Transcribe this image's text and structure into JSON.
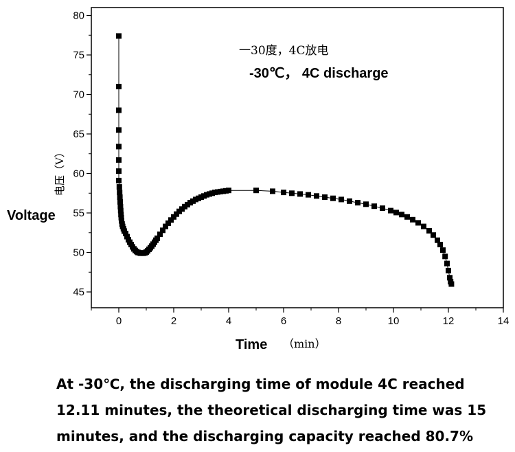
{
  "chart_data": {
    "type": "scatter",
    "title_cn": "一30度，4C放电",
    "title_en": "-30℃， 4C discharge",
    "xlabel": "Time",
    "xlabel_unit": "（min）",
    "ylabel": "Voltage",
    "ylabel_cn": "电压（V）",
    "xlim": [
      -1,
      14
    ],
    "ylim": [
      43,
      81
    ],
    "x_ticks": [
      0,
      2,
      4,
      6,
      8,
      10,
      12,
      14
    ],
    "y_ticks": [
      45,
      50,
      55,
      60,
      65,
      70,
      75,
      80
    ],
    "grid": false,
    "series": [
      {
        "name": "-30℃ 4C discharge",
        "points": [
          [
            0.0,
            77.4
          ],
          [
            0.0,
            71.0
          ],
          [
            0.0,
            68.0
          ],
          [
            0.0,
            65.5
          ],
          [
            0.0,
            63.4
          ],
          [
            0.0,
            61.7
          ],
          [
            0.0,
            60.3
          ],
          [
            0.0,
            59.1
          ],
          [
            0.02,
            58.3
          ],
          [
            0.03,
            57.6
          ],
          [
            0.04,
            57.0
          ],
          [
            0.05,
            56.4
          ],
          [
            0.06,
            55.8
          ],
          [
            0.07,
            55.3
          ],
          [
            0.08,
            54.8
          ],
          [
            0.09,
            54.4
          ],
          [
            0.1,
            54.0
          ],
          [
            0.12,
            53.6
          ],
          [
            0.14,
            53.3
          ],
          [
            0.17,
            53.0
          ],
          [
            0.2,
            52.7
          ],
          [
            0.25,
            52.4
          ],
          [
            0.3,
            52.0
          ],
          [
            0.35,
            51.6
          ],
          [
            0.4,
            51.3
          ],
          [
            0.45,
            51.0
          ],
          [
            0.5,
            50.7
          ],
          [
            0.55,
            50.45
          ],
          [
            0.6,
            50.25
          ],
          [
            0.65,
            50.1
          ],
          [
            0.7,
            50.0
          ],
          [
            0.75,
            49.95
          ],
          [
            0.8,
            49.9
          ],
          [
            0.85,
            49.9
          ],
          [
            0.9,
            49.9
          ],
          [
            0.95,
            49.95
          ],
          [
            1.0,
            50.05
          ],
          [
            1.05,
            50.2
          ],
          [
            1.1,
            50.4
          ],
          [
            1.15,
            50.6
          ],
          [
            1.2,
            50.8
          ],
          [
            1.25,
            51.05
          ],
          [
            1.3,
            51.3
          ],
          [
            1.35,
            51.55
          ],
          [
            1.4,
            51.8
          ],
          [
            1.5,
            52.3
          ],
          [
            1.6,
            52.8
          ],
          [
            1.7,
            53.3
          ],
          [
            1.8,
            53.7
          ],
          [
            1.9,
            54.1
          ],
          [
            2.0,
            54.5
          ],
          [
            2.1,
            54.85
          ],
          [
            2.2,
            55.2
          ],
          [
            2.3,
            55.5
          ],
          [
            2.4,
            55.8
          ],
          [
            2.5,
            56.05
          ],
          [
            2.6,
            56.3
          ],
          [
            2.7,
            56.5
          ],
          [
            2.8,
            56.7
          ],
          [
            2.9,
            56.85
          ],
          [
            3.0,
            57.0
          ],
          [
            3.1,
            57.15
          ],
          [
            3.2,
            57.3
          ],
          [
            3.3,
            57.4
          ],
          [
            3.4,
            57.5
          ],
          [
            3.5,
            57.6
          ],
          [
            3.6,
            57.65
          ],
          [
            3.7,
            57.7
          ],
          [
            3.8,
            57.75
          ],
          [
            3.9,
            57.8
          ],
          [
            4.0,
            57.85
          ],
          [
            5.0,
            57.85
          ],
          [
            5.6,
            57.75
          ],
          [
            6.0,
            57.6
          ],
          [
            6.3,
            57.5
          ],
          [
            6.6,
            57.4
          ],
          [
            6.9,
            57.3
          ],
          [
            7.2,
            57.15
          ],
          [
            7.5,
            57.0
          ],
          [
            7.8,
            56.85
          ],
          [
            8.1,
            56.7
          ],
          [
            8.4,
            56.5
          ],
          [
            8.7,
            56.3
          ],
          [
            9.0,
            56.1
          ],
          [
            9.3,
            55.85
          ],
          [
            9.6,
            55.6
          ],
          [
            9.9,
            55.3
          ],
          [
            10.1,
            55.05
          ],
          [
            10.3,
            54.8
          ],
          [
            10.5,
            54.5
          ],
          [
            10.7,
            54.15
          ],
          [
            10.9,
            53.75
          ],
          [
            11.1,
            53.3
          ],
          [
            11.3,
            52.75
          ],
          [
            11.45,
            52.2
          ],
          [
            11.6,
            51.55
          ],
          [
            11.7,
            51.0
          ],
          [
            11.8,
            50.3
          ],
          [
            11.88,
            49.5
          ],
          [
            11.95,
            48.6
          ],
          [
            12.0,
            47.7
          ],
          [
            12.05,
            46.8
          ],
          [
            12.08,
            46.3
          ],
          [
            12.11,
            46.0
          ]
        ]
      }
    ]
  },
  "caption": {
    "text": "At -30℃, the discharging time of module 4C reached 12.11 minutes, the theoretical discharging time was 15 minutes, and the discharging capacity reached 80.7%"
  }
}
